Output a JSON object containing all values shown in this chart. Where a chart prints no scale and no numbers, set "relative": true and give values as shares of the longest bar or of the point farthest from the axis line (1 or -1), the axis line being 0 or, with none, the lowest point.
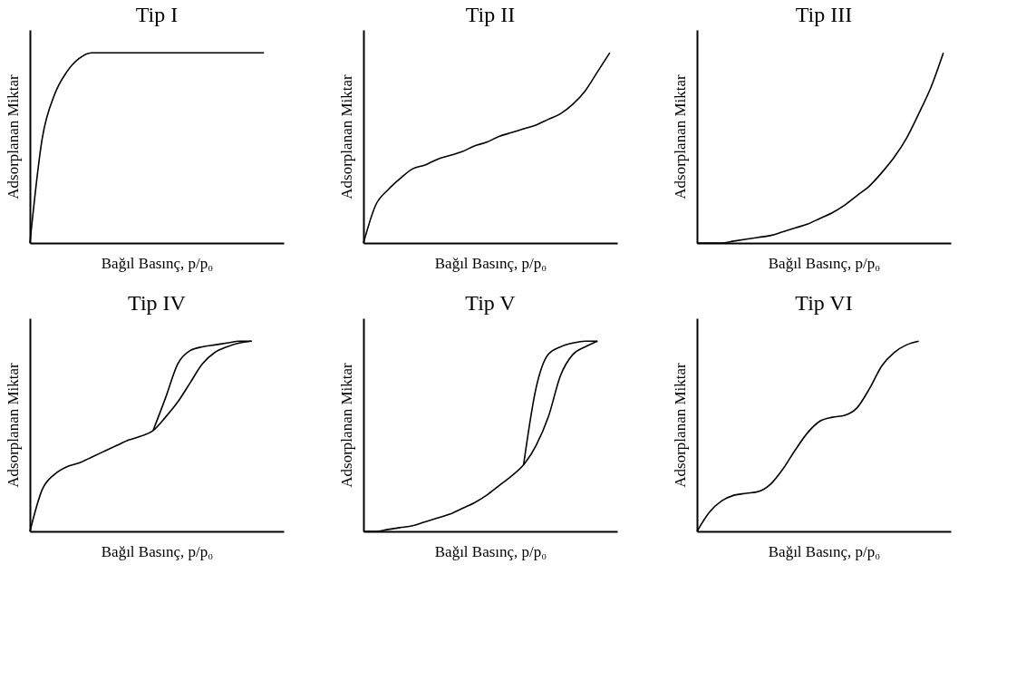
{
  "chart_data": [
    {
      "type": "line",
      "title": "Tip I",
      "xlabel": "Bağıl Basınç, p/p₀",
      "ylabel": "Adsorplanan Miktar",
      "relative": true,
      "grid": false,
      "marker": "none",
      "line_style": "solid",
      "categories": [
        null,
        null,
        null,
        null,
        null,
        null,
        null,
        null,
        null,
        null,
        null,
        null,
        null,
        null,
        null,
        null,
        null,
        null,
        null,
        null,
        null
      ],
      "series": [
        {
          "color": "#000000",
          "values": [
            0,
            0.55,
            0.78,
            0.9,
            0.97,
            1,
            1,
            1,
            1,
            1,
            1,
            1,
            1,
            1,
            1,
            1,
            1,
            1,
            1,
            1,
            null
          ]
        }
      ]
    },
    {
      "type": "line",
      "title": "Tip II",
      "xlabel": "Bağıl Basınç, p/p₀",
      "ylabel": "Adsorplanan Miktar",
      "relative": true,
      "grid": false,
      "marker": "none",
      "line_style": "solid",
      "categories": [
        null,
        null,
        null,
        null,
        null,
        null,
        null,
        null,
        null,
        null,
        null,
        null,
        null,
        null,
        null,
        null,
        null,
        null,
        null,
        null,
        null
      ],
      "series": [
        {
          "color": "#000000",
          "values": [
            0,
            0.2,
            0.28,
            0.34,
            0.39,
            0.41,
            0.44,
            0.46,
            0.48,
            0.51,
            0.53,
            0.56,
            0.58,
            0.6,
            0.62,
            0.65,
            0.68,
            0.73,
            0.8,
            0.9,
            1
          ]
        }
      ]
    },
    {
      "type": "line",
      "title": "Tip III",
      "xlabel": "Bağıl Basınç, p/p₀",
      "ylabel": "Adsorplanan Miktar",
      "relative": true,
      "grid": false,
      "marker": "none",
      "line_style": "solid",
      "categories": [
        null,
        null,
        null,
        null,
        null,
        null,
        null,
        null,
        null,
        null,
        null,
        null,
        null,
        null,
        null,
        null,
        null,
        null,
        null,
        null,
        null
      ],
      "series": [
        {
          "color": "#000000",
          "values": [
            0,
            0,
            0,
            0.01,
            0.02,
            0.03,
            0.04,
            0.06,
            0.08,
            0.1,
            0.13,
            0.16,
            0.2,
            0.25,
            0.3,
            0.37,
            0.45,
            0.55,
            0.68,
            0.82,
            1
          ]
        }
      ]
    },
    {
      "type": "line",
      "title": "Tip IV",
      "xlabel": "Bağıl Basınç, p/p₀",
      "ylabel": "Adsorplanan Miktar",
      "relative": true,
      "grid": false,
      "marker": "none",
      "line_style": "solid",
      "categories": [
        null,
        null,
        null,
        null,
        null,
        null,
        null,
        null,
        null,
        null,
        null,
        null,
        null,
        null,
        null,
        null,
        null,
        null,
        null,
        null,
        null
      ],
      "series": [
        {
          "color": "#000000",
          "values": [
            0,
            0.22,
            0.3,
            0.34,
            0.36,
            0.39,
            0.42,
            0.45,
            0.48,
            0.5,
            0.53,
            0.6,
            0.68,
            0.78,
            0.88,
            0.94,
            0.97,
            0.99,
            1,
            null,
            null
          ]
        },
        {
          "color": "#000000",
          "values": [
            null,
            null,
            null,
            null,
            null,
            null,
            null,
            null,
            null,
            null,
            0.53,
            0.7,
            0.88,
            0.95,
            0.97,
            0.98,
            0.99,
            1,
            1,
            null,
            null
          ]
        }
      ]
    },
    {
      "type": "line",
      "title": "Tip V",
      "xlabel": "Bağıl Basınç, p/p₀",
      "ylabel": "Adsorplanan Miktar",
      "relative": true,
      "grid": false,
      "marker": "none",
      "line_style": "solid",
      "categories": [
        null,
        null,
        null,
        null,
        null,
        null,
        null,
        null,
        null,
        null,
        null,
        null,
        null,
        null,
        null,
        null,
        null,
        null,
        null,
        null,
        null
      ],
      "series": [
        {
          "color": "#000000",
          "values": [
            0,
            0,
            0.01,
            0.02,
            0.03,
            0.05,
            0.07,
            0.09,
            0.12,
            0.15,
            0.19,
            0.24,
            0.29,
            0.35,
            0.45,
            0.6,
            0.82,
            0.93,
            0.97,
            1,
            null
          ]
        },
        {
          "color": "#000000",
          "values": [
            null,
            null,
            null,
            null,
            null,
            null,
            null,
            null,
            null,
            null,
            null,
            null,
            null,
            0.35,
            0.75,
            0.93,
            0.97,
            0.99,
            1,
            1,
            null
          ]
        }
      ]
    },
    {
      "type": "line",
      "title": "Tip VI",
      "xlabel": "Bağıl Basınç, p/p₀",
      "ylabel": "Adsorplanan Miktar",
      "relative": true,
      "grid": false,
      "marker": "none",
      "line_style": "solid",
      "categories": [
        null,
        null,
        null,
        null,
        null,
        null,
        null,
        null,
        null,
        null,
        null,
        null,
        null,
        null,
        null,
        null,
        null,
        null,
        null,
        null,
        null
      ],
      "series": [
        {
          "color": "#000000",
          "values": [
            0,
            0.1,
            0.16,
            0.19,
            0.2,
            0.21,
            0.25,
            0.33,
            0.43,
            0.52,
            0.58,
            0.6,
            0.61,
            0.65,
            0.75,
            0.87,
            0.94,
            0.98,
            1,
            null,
            null
          ]
        }
      ]
    }
  ]
}
